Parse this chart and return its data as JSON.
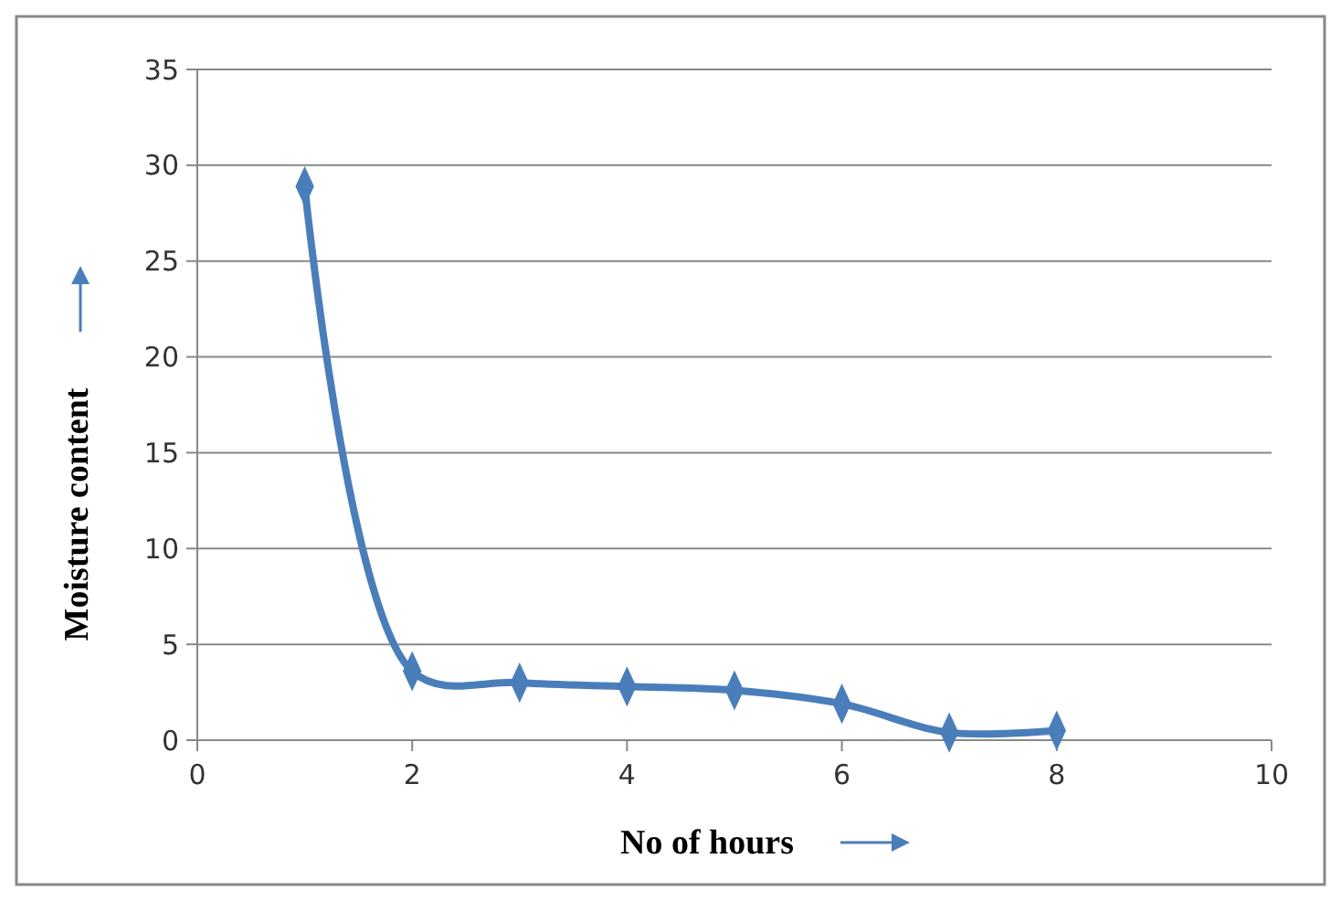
{
  "chart_data": {
    "type": "line",
    "xlabel": "No of hours",
    "ylabel": "Moisture content",
    "x": [
      1,
      2,
      3,
      4,
      5,
      6,
      7,
      8
    ],
    "series": [
      {
        "color": "#4a7ebb",
        "values": [
          28.9,
          3.6,
          3.0,
          2.8,
          2.6,
          1.9,
          0.4,
          0.5
        ]
      }
    ],
    "xlim": [
      0,
      10
    ],
    "xticks": [
      0,
      2,
      4,
      6,
      8,
      10
    ],
    "ylim": [
      0,
      35
    ],
    "yticks": [
      0,
      5,
      10,
      15,
      20,
      25,
      30,
      35
    ],
    "grid": "y",
    "marker": "diamond",
    "line_style": "solid"
  }
}
